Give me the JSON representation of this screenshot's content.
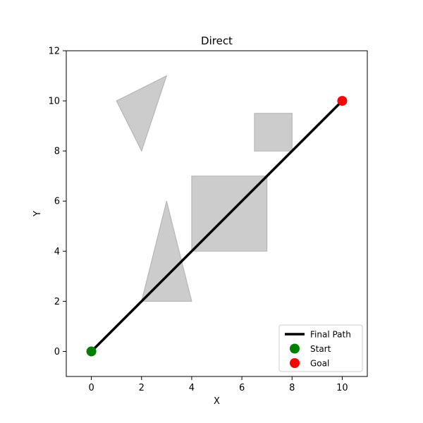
{
  "chart_data": {
    "type": "line",
    "title": "Direct",
    "xlabel": "X",
    "ylabel": "Y",
    "xlim": [
      -1,
      11
    ],
    "ylim": [
      -1,
      12
    ],
    "xticks": [
      0,
      2,
      4,
      6,
      8,
      10
    ],
    "yticks": [
      0,
      2,
      4,
      6,
      8,
      10,
      12
    ],
    "grid": false,
    "legend_position": "bottom-right",
    "obstacles": [
      {
        "name": "triangle-upper-left",
        "points": [
          [
            1,
            10
          ],
          [
            3,
            11
          ],
          [
            2,
            8
          ]
        ],
        "color": "#cccccc",
        "edge_color": "#b0b0b0"
      },
      {
        "name": "triangle-lower",
        "points": [
          [
            2,
            2
          ],
          [
            3,
            6
          ],
          [
            4,
            2
          ]
        ],
        "color": "#cccccc",
        "edge_color": "#b0b0b0"
      },
      {
        "name": "rectangle-center",
        "points": [
          [
            4,
            4
          ],
          [
            7,
            4
          ],
          [
            7,
            7
          ],
          [
            4,
            7
          ]
        ],
        "color": "#cccccc",
        "edge_color": "#b0b0b0"
      },
      {
        "name": "square-upper-right",
        "points": [
          [
            6.5,
            8
          ],
          [
            8,
            8
          ],
          [
            8,
            9.5
          ],
          [
            6.5,
            9.5
          ]
        ],
        "color": "#cccccc",
        "edge_color": "#b0b0b0"
      }
    ],
    "series": [
      {
        "name": "Final Path",
        "kind": "line",
        "color": "#000000",
        "points": [
          [
            0,
            0
          ],
          [
            10,
            10
          ]
        ]
      },
      {
        "name": "Start",
        "kind": "marker",
        "color": "#008000",
        "points": [
          [
            0,
            0
          ]
        ]
      },
      {
        "name": "Goal",
        "kind": "marker",
        "color": "#ff0000",
        "points": [
          [
            10,
            10
          ]
        ]
      }
    ]
  }
}
